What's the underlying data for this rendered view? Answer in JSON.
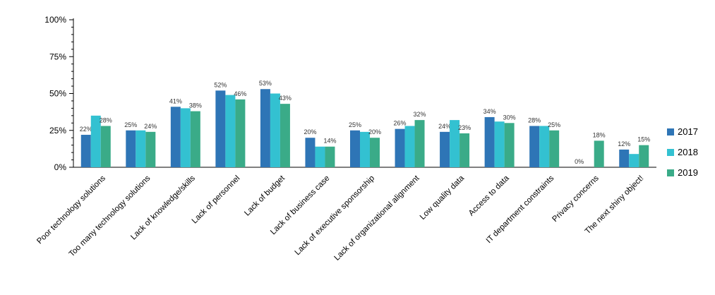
{
  "chart_data": {
    "type": "bar",
    "title": "",
    "xlabel": "",
    "ylabel": "",
    "ylim": [
      0,
      100
    ],
    "yticks": [
      "0%",
      "25%",
      "50%",
      "75%",
      "100%"
    ],
    "categories": [
      "Poor technology solutions",
      "Too many technology solutions",
      "Lack of knowledge/skills",
      "Lack of personnel",
      "Lack of budget",
      "Lack of business case",
      "Lack of executive sponsorship",
      "Lack of organizational alignment",
      "Low quality data",
      "Access to data",
      "IT department constraints",
      "Privacy concerns",
      "The next shiny object!"
    ],
    "series": [
      {
        "name": "2017",
        "color": "#2e75b6",
        "values": [
          22,
          25,
          41,
          52,
          53,
          20,
          25,
          26,
          24,
          34,
          28,
          0,
          12
        ],
        "labels": [
          "22%",
          "25%",
          "41%",
          "52%",
          "53%",
          "20%",
          "25%",
          "26%",
          "24%",
          "34%",
          "28%",
          "0%",
          "12%"
        ]
      },
      {
        "name": "2018",
        "color": "#33c1d1",
        "values": [
          35,
          25,
          40,
          49,
          50,
          14,
          24,
          28,
          32,
          31,
          28,
          null,
          9
        ],
        "labels": [
          "",
          "",
          "",
          "",
          "",
          "",
          "",
          "",
          "",
          "",
          "",
          "",
          ""
        ]
      },
      {
        "name": "2019",
        "color": "#3aab88",
        "values": [
          28,
          24,
          38,
          46,
          43,
          14,
          20,
          32,
          23,
          30,
          25,
          18,
          15
        ],
        "labels": [
          "28%",
          "24%",
          "38%",
          "46%",
          "43%",
          "14%",
          "20%",
          "32%",
          "23%",
          "30%",
          "25%",
          "18%",
          "15%"
        ]
      }
    ],
    "legend_position": "right",
    "grid": false
  }
}
